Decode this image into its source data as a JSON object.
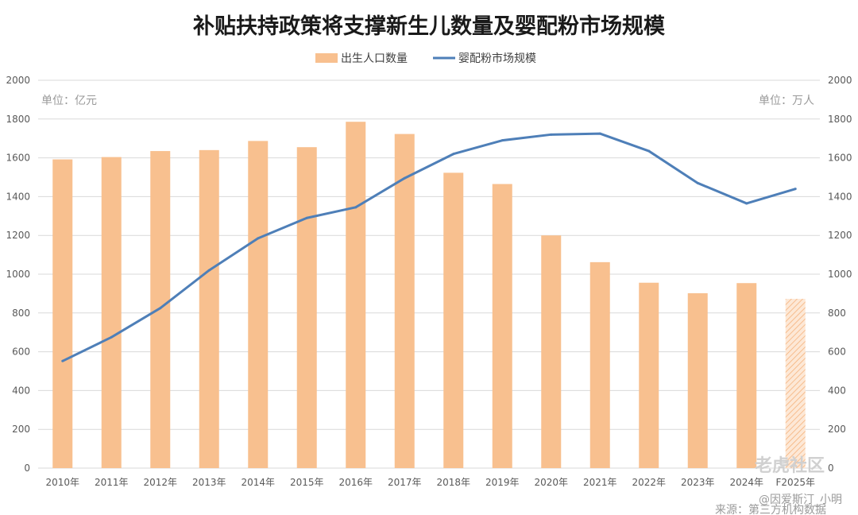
{
  "chart_data": {
    "type": "bar",
    "title": "补贴扶持政策将支撑新生儿数量及婴配粉市场规模",
    "left_unit": "单位：亿元",
    "right_unit": "单位：万人",
    "categories": [
      "2010年",
      "2011年",
      "2012年",
      "2013年",
      "2014年",
      "2015年",
      "2016年",
      "2017年",
      "2018年",
      "2019年",
      "2020年",
      "2021年",
      "2022年",
      "2023年",
      "2024年",
      "F2025年"
    ],
    "ylim": [
      0,
      2000
    ],
    "yticks": [
      "0",
      "200",
      "400",
      "600",
      "800",
      "1000",
      "1200",
      "1400",
      "1600",
      "1800",
      "2000"
    ],
    "y2lim": [
      0,
      2000
    ],
    "y2ticks": [
      "0",
      "200",
      "400",
      "600",
      "800",
      "1000",
      "1200",
      "1400",
      "1600",
      "1800",
      "2000"
    ],
    "series": [
      {
        "name": "出生人口数量",
        "type": "bar",
        "axis": "right",
        "values": [
          1592,
          1604,
          1635,
          1640,
          1687,
          1655,
          1786,
          1723,
          1523,
          1465,
          1200,
          1062,
          956,
          902,
          954,
          873
        ],
        "forecast_from_index": 15
      },
      {
        "name": "婴配粉市场规模",
        "type": "line",
        "axis": "left",
        "values": [
          552,
          675,
          825,
          1020,
          1185,
          1290,
          1345,
          1495,
          1620,
          1690,
          1720,
          1725,
          1635,
          1470,
          1365,
          1440
        ]
      }
    ],
    "legend_position": "top-center",
    "grid": true,
    "colors": {
      "bar": "#f8c08f",
      "line": "#4e7fb8",
      "grid": "#d9d9d9"
    }
  },
  "watermark": {
    "brand": "老虎社区",
    "author": "@因爱斯汀_小明"
  },
  "source": "来源：第三方机构数据"
}
